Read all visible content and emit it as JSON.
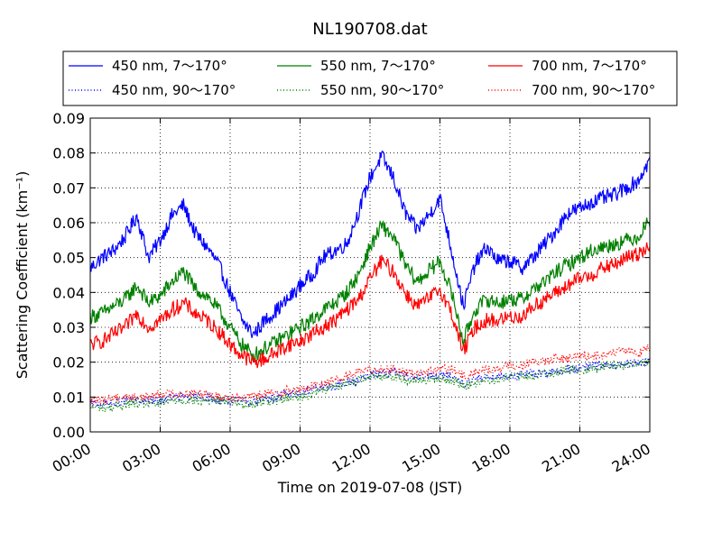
{
  "chart_data": {
    "type": "line",
    "title": "NL190708.dat",
    "xlabel": "Time on 2019-07-08 (JST)",
    "ylabel": "Scattering Coefficient (km⁻¹)",
    "xlim": [
      "2019-07-08 00:00",
      "2019-07-09 00:00"
    ],
    "ylim": [
      0.0,
      0.09
    ],
    "x_ticks": [
      "00:00",
      "03:00",
      "06:00",
      "09:00",
      "12:00",
      "15:00",
      "18:00",
      "21:00",
      "24:00"
    ],
    "y_ticks": [
      "0.00",
      "0.01",
      "0.02",
      "0.03",
      "0.04",
      "0.05",
      "0.06",
      "0.07",
      "0.08",
      "0.09"
    ],
    "grid": true,
    "legend_position": "top",
    "x_hours": [
      0,
      0.5,
      1,
      1.5,
      2,
      2.5,
      3,
      3.5,
      4,
      4.5,
      5,
      5.5,
      6,
      6.5,
      7,
      7.5,
      8,
      8.5,
      9,
      9.5,
      10,
      10.5,
      11,
      11.5,
      12,
      12.5,
      13,
      13.5,
      14,
      14.5,
      15,
      15.5,
      16,
      16.5,
      17,
      17.5,
      18,
      18.5,
      19,
      19.5,
      20,
      20.5,
      21,
      21.5,
      22,
      22.5,
      23,
      23.5,
      24
    ],
    "series": [
      {
        "name": "450 nm, 7～170°",
        "color": "#0000ff",
        "dash": "solid",
        "values": [
          0.047,
          0.05,
          0.052,
          0.056,
          0.062,
          0.05,
          0.055,
          0.062,
          0.065,
          0.057,
          0.053,
          0.048,
          0.04,
          0.032,
          0.028,
          0.032,
          0.035,
          0.038,
          0.042,
          0.045,
          0.05,
          0.052,
          0.054,
          0.063,
          0.073,
          0.079,
          0.073,
          0.063,
          0.058,
          0.062,
          0.067,
          0.052,
          0.036,
          0.048,
          0.053,
          0.049,
          0.049,
          0.047,
          0.05,
          0.054,
          0.058,
          0.063,
          0.064,
          0.066,
          0.067,
          0.068,
          0.07,
          0.072,
          0.078
        ]
      },
      {
        "name": "550 nm, 7～170°",
        "color": "#008000",
        "dash": "solid",
        "values": [
          0.033,
          0.034,
          0.036,
          0.038,
          0.042,
          0.037,
          0.039,
          0.043,
          0.046,
          0.041,
          0.039,
          0.035,
          0.03,
          0.025,
          0.022,
          0.024,
          0.026,
          0.028,
          0.03,
          0.032,
          0.035,
          0.037,
          0.04,
          0.045,
          0.053,
          0.059,
          0.056,
          0.048,
          0.043,
          0.046,
          0.049,
          0.04,
          0.026,
          0.035,
          0.038,
          0.037,
          0.038,
          0.038,
          0.041,
          0.043,
          0.046,
          0.048,
          0.05,
          0.052,
          0.053,
          0.054,
          0.055,
          0.056,
          0.061
        ]
      },
      {
        "name": "700 nm, 7～170°",
        "color": "#ff0000",
        "dash": "solid",
        "values": [
          0.025,
          0.026,
          0.028,
          0.03,
          0.034,
          0.03,
          0.032,
          0.035,
          0.037,
          0.034,
          0.032,
          0.029,
          0.025,
          0.022,
          0.02,
          0.021,
          0.023,
          0.025,
          0.026,
          0.028,
          0.03,
          0.032,
          0.035,
          0.038,
          0.044,
          0.049,
          0.046,
          0.04,
          0.036,
          0.038,
          0.041,
          0.034,
          0.023,
          0.03,
          0.032,
          0.032,
          0.033,
          0.033,
          0.036,
          0.038,
          0.04,
          0.042,
          0.044,
          0.045,
          0.047,
          0.048,
          0.05,
          0.051,
          0.054
        ]
      },
      {
        "name": "450 nm, 90～170°",
        "color": "#0000ff",
        "dash": "dotted",
        "values": [
          0.008,
          0.008,
          0.008,
          0.009,
          0.009,
          0.009,
          0.009,
          0.01,
          0.01,
          0.01,
          0.01,
          0.009,
          0.009,
          0.009,
          0.009,
          0.01,
          0.01,
          0.011,
          0.011,
          0.012,
          0.013,
          0.013,
          0.014,
          0.015,
          0.016,
          0.017,
          0.017,
          0.016,
          0.016,
          0.016,
          0.016,
          0.016,
          0.014,
          0.015,
          0.016,
          0.016,
          0.016,
          0.016,
          0.017,
          0.017,
          0.017,
          0.018,
          0.018,
          0.019,
          0.019,
          0.019,
          0.019,
          0.02,
          0.02
        ]
      },
      {
        "name": "550 nm, 90～170°",
        "color": "#008000",
        "dash": "dotted",
        "values": [
          0.007,
          0.007,
          0.007,
          0.008,
          0.008,
          0.008,
          0.008,
          0.009,
          0.009,
          0.009,
          0.009,
          0.009,
          0.009,
          0.008,
          0.008,
          0.009,
          0.009,
          0.01,
          0.01,
          0.011,
          0.012,
          0.013,
          0.014,
          0.015,
          0.016,
          0.016,
          0.016,
          0.015,
          0.015,
          0.015,
          0.015,
          0.015,
          0.013,
          0.014,
          0.015,
          0.015,
          0.016,
          0.016,
          0.016,
          0.017,
          0.017,
          0.018,
          0.018,
          0.018,
          0.019,
          0.019,
          0.019,
          0.02,
          0.02
        ]
      },
      {
        "name": "700 nm, 90～170°",
        "color": "#ff0000",
        "dash": "dotted",
        "values": [
          0.009,
          0.009,
          0.01,
          0.01,
          0.01,
          0.01,
          0.011,
          0.011,
          0.011,
          0.011,
          0.011,
          0.01,
          0.01,
          0.01,
          0.01,
          0.011,
          0.011,
          0.012,
          0.012,
          0.013,
          0.014,
          0.015,
          0.016,
          0.017,
          0.018,
          0.018,
          0.018,
          0.017,
          0.017,
          0.017,
          0.018,
          0.018,
          0.016,
          0.017,
          0.018,
          0.018,
          0.019,
          0.019,
          0.02,
          0.02,
          0.021,
          0.021,
          0.022,
          0.022,
          0.022,
          0.023,
          0.023,
          0.023,
          0.024
        ]
      }
    ],
    "legend_order": [
      0,
      1,
      2,
      3,
      4,
      5
    ]
  }
}
